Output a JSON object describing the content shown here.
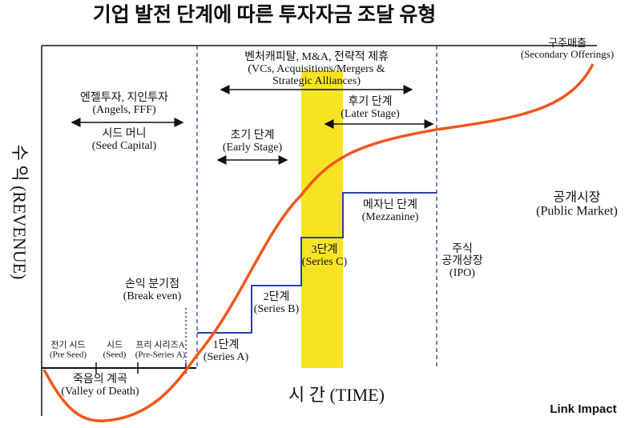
{
  "title": "기업 발전 단계에 따른 투자자금 조달 유형",
  "y_axis_label": "수 익 (REVENUE)",
  "x_axis_label": "시 간 (TIME)",
  "labels": [
    {
      "lines": [
        "구주매출",
        "(Secondary Offerings)"
      ]
    },
    {
      "lines": [
        "벤처캐피탈, M&A, 전략적 제휴",
        "(VCs, Acquisitions/Mergers &",
        "Strategic Alliances)"
      ]
    },
    {
      "lines": [
        "엔젤투자, 지인투자",
        "(Angels, FFF)"
      ]
    },
    {
      "lines": [
        "시드 머니",
        "(Seed Capital)"
      ]
    },
    {
      "lines": [
        "후기 단계",
        "(Later Stage)"
      ]
    },
    {
      "lines": [
        "초기 단계",
        "(Early Stage)"
      ]
    },
    {
      "lines": [
        "공개시장",
        "(Public Market)"
      ]
    },
    {
      "lines": [
        "메자닌 단계",
        "(Mezzanine)"
      ]
    },
    {
      "lines": [
        "주식",
        "공개상장",
        "(IPO)"
      ]
    },
    {
      "lines": [
        "3단계",
        "(Series C)"
      ]
    },
    {
      "lines": [
        "손익 분기점",
        "(Break even)"
      ]
    },
    {
      "lines": [
        "2단계",
        "(Series B)"
      ]
    },
    {
      "lines": [
        "1단계",
        "(Series A)"
      ]
    },
    {
      "lines": [
        "전기 시드",
        "(Pre Seed)"
      ]
    },
    {
      "lines": [
        "시드",
        "(Seed)"
      ]
    },
    {
      "lines": [
        "프리 시리즈A",
        "(Pre-Series A)"
      ]
    },
    {
      "lines": [
        "죽음의 계곡",
        "(Valley of Death)"
      ]
    }
  ],
  "logo": "Link Impact"
}
